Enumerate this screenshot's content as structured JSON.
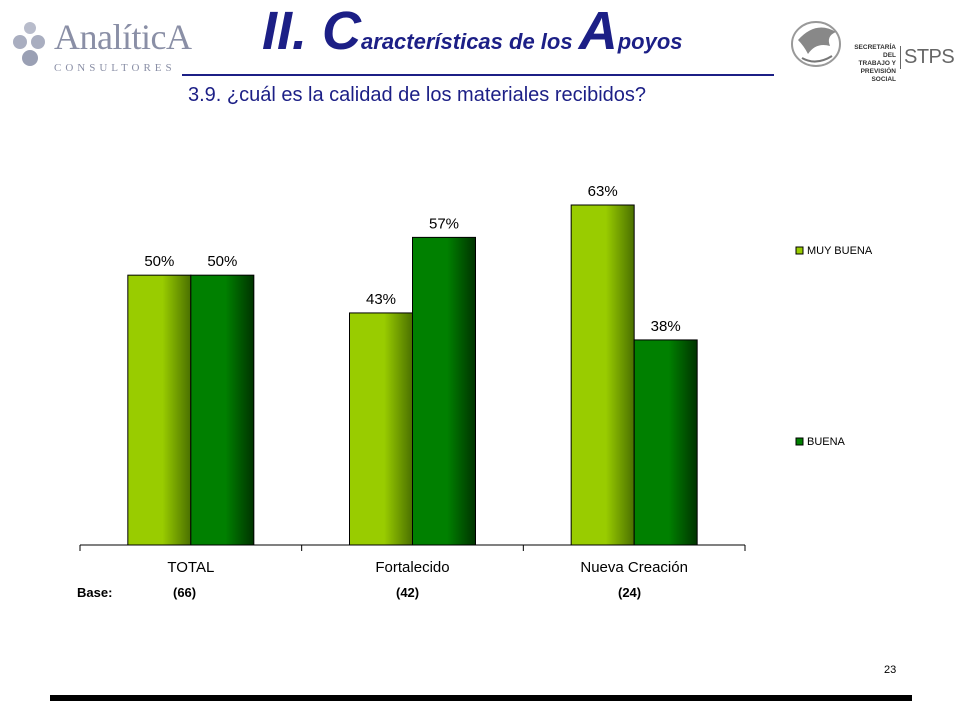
{
  "header": {
    "logo_left": {
      "name": "AnalíticA",
      "sub": "CONSULTORES"
    },
    "title_parts": [
      "II. ",
      "C",
      "aracterísticas de los ",
      "A",
      "poyos"
    ],
    "subtitle": "3.9. ¿cuál es la calidad de los materiales recibidos?",
    "logo_right": {
      "sec_lines": [
        "SECRETARÍA DEL",
        "TRABAJO Y",
        "PREVISIÓN SOCIAL"
      ],
      "stps": "STPS"
    }
  },
  "chart_data": {
    "type": "bar",
    "title": "",
    "xlabel": "",
    "ylabel": "",
    "categories": [
      "TOTAL",
      "Fortalecido",
      "Nueva Creación"
    ],
    "series": [
      {
        "name": "MUY BUENA",
        "values": [
          50,
          43,
          63
        ],
        "labels": [
          "50%",
          "43%",
          "63%"
        ],
        "color": "#99cc00",
        "shade": "#4a7000"
      },
      {
        "name": "BUENA",
        "values": [
          50,
          57,
          38
        ],
        "labels": [
          "50%",
          "57%",
          "38%"
        ],
        "color": "#008000",
        "shade": "#003300"
      }
    ],
    "ylim": [
      0,
      70
    ],
    "grid": false,
    "legend": "right"
  },
  "base": {
    "label": "Base:",
    "values": [
      "(66)",
      "(42)",
      "(24)"
    ]
  },
  "footer": {
    "page_number": "23"
  }
}
